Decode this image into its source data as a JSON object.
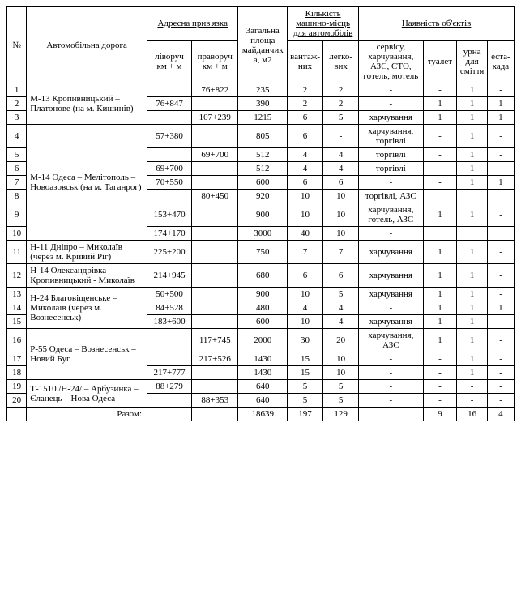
{
  "headers": {
    "num": "№",
    "road": "Автомобільна дорога",
    "addr": "Адресна прив'язка",
    "left": "ліворуч км + м",
    "right": "праворуч км + м",
    "area": "Загальна площа майданчика, м2",
    "veh": "Кількість машино-місць для автомобілів",
    "vant": "вантаж-них",
    "legk": "легко-вих",
    "obj": "Наявність об'єктів",
    "serv": "сервісу, харчування, АЗС, СТО, готель, мотель",
    "toilet": "туалет",
    "urn": "урна для сміття",
    "esta": "еста-када"
  },
  "roads": {
    "r1": "М-13 Кропивницький – Платонове (на м. Кишинів)",
    "r2": "М-14 Одеса – Мелітополь – Новоазовськ (на м. Таганрог)",
    "r3": "Н-11 Дніпро – Миколаїв (через м. Кривий Ріг)",
    "r4": "Н-14 Олександрівка – Кропивницький - Миколаїв",
    "r5": "Н-24 Благовіщенське – Миколаїв (через м. Вознесенськ)",
    "r6": "Р-55 Одеса – Вознесенськ – Новий Буг",
    "r7": "Т-1510 /Н-24/ – Арбузинка – Єланець – Нова Одеса"
  },
  "rows": [
    {
      "n": "1",
      "l": "",
      "r": "76+822",
      "a": "235",
      "v": "2",
      "lv": "2",
      "s": "-",
      "t": "-",
      "u": "1",
      "e": "-"
    },
    {
      "n": "2",
      "l": "76+847",
      "r": "",
      "a": "390",
      "v": "2",
      "lv": "2",
      "s": "-",
      "t": "1",
      "u": "1",
      "e": "1"
    },
    {
      "n": "3",
      "l": "",
      "r": "107+239",
      "a": "1215",
      "v": "6",
      "lv": "5",
      "s": "харчування",
      "t": "1",
      "u": "1",
      "e": "1"
    },
    {
      "n": "4",
      "l": "57+380",
      "r": "",
      "a": "805",
      "v": "6",
      "lv": "-",
      "s": "харчування, торгівлі",
      "t": "-",
      "u": "1",
      "e": "-"
    },
    {
      "n": "5",
      "l": "",
      "r": "69+700",
      "a": "512",
      "v": "4",
      "lv": "4",
      "s": "торгівлі",
      "t": "-",
      "u": "1",
      "e": "-"
    },
    {
      "n": "6",
      "l": "69+700",
      "r": "",
      "a": "512",
      "v": "4",
      "lv": "4",
      "s": "торгівлі",
      "t": "-",
      "u": "1",
      "e": "-"
    },
    {
      "n": "7",
      "l": "70+550",
      "r": "",
      "a": "600",
      "v": "6",
      "lv": "6",
      "s": "-",
      "t": "-",
      "u": "1",
      "e": "1"
    },
    {
      "n": "8",
      "l": "",
      "r": "80+450",
      "a": "920",
      "v": "10",
      "lv": "10",
      "s": "торгівлі, АЗС",
      "t": "",
      "u": "",
      "e": ""
    },
    {
      "n": "9",
      "l": "153+470",
      "r": "",
      "a": "900",
      "v": "10",
      "lv": "10",
      "s": "харчування, готель, АЗС",
      "t": "1",
      "u": "1",
      "e": "-"
    },
    {
      "n": "10",
      "l": "174+170",
      "r": "",
      "a": "3000",
      "v": "40",
      "lv": "10",
      "s": "-",
      "t": "",
      "u": "",
      "e": ""
    },
    {
      "n": "11",
      "l": "225+200",
      "r": "",
      "a": "750",
      "v": "7",
      "lv": "7",
      "s": "харчування",
      "t": "1",
      "u": "1",
      "e": "-"
    },
    {
      "n": "12",
      "l": "214+945",
      "r": "",
      "a": "680",
      "v": "6",
      "lv": "6",
      "s": "харчування",
      "t": "1",
      "u": "1",
      "e": "-"
    },
    {
      "n": "13",
      "l": "50+500",
      "r": "",
      "a": "900",
      "v": "10",
      "lv": "5",
      "s": "харчування",
      "t": "1",
      "u": "1",
      "e": "-"
    },
    {
      "n": "14",
      "l": "84+528",
      "r": "",
      "a": "480",
      "v": "4",
      "lv": "4",
      "s": "-",
      "t": "1",
      "u": "1",
      "e": "1"
    },
    {
      "n": "15",
      "l": "183+600",
      "r": "",
      "a": "600",
      "v": "10",
      "lv": "4",
      "s": "харчування",
      "t": "1",
      "u": "1",
      "e": "-"
    },
    {
      "n": "16",
      "l": "",
      "r": "117+745",
      "a": "2000",
      "v": "30",
      "lv": "20",
      "s": "харчування, АЗС",
      "t": "1",
      "u": "1",
      "e": "-"
    },
    {
      "n": "17",
      "l": "",
      "r": "217+526",
      "a": "1430",
      "v": "15",
      "lv": "10",
      "s": "-",
      "t": "-",
      "u": "1",
      "e": "-"
    },
    {
      "n": "18",
      "l": "217+777",
      "r": "",
      "a": "1430",
      "v": "15",
      "lv": "10",
      "s": "-",
      "t": "-",
      "u": "1",
      "e": "-"
    },
    {
      "n": "19",
      "l": "88+279",
      "r": "",
      "a": "640",
      "v": "5",
      "lv": "5",
      "s": "-",
      "t": "-",
      "u": "-",
      "e": "-"
    },
    {
      "n": "20",
      "l": "",
      "r": "88+353",
      "a": "640",
      "v": "5",
      "lv": "5",
      "s": "-",
      "t": "-",
      "u": "-",
      "e": "-"
    }
  ],
  "total": {
    "label": "Разом:",
    "a": "18639",
    "v": "197",
    "lv": "129",
    "t": "9",
    "u": "16",
    "e": "4"
  }
}
